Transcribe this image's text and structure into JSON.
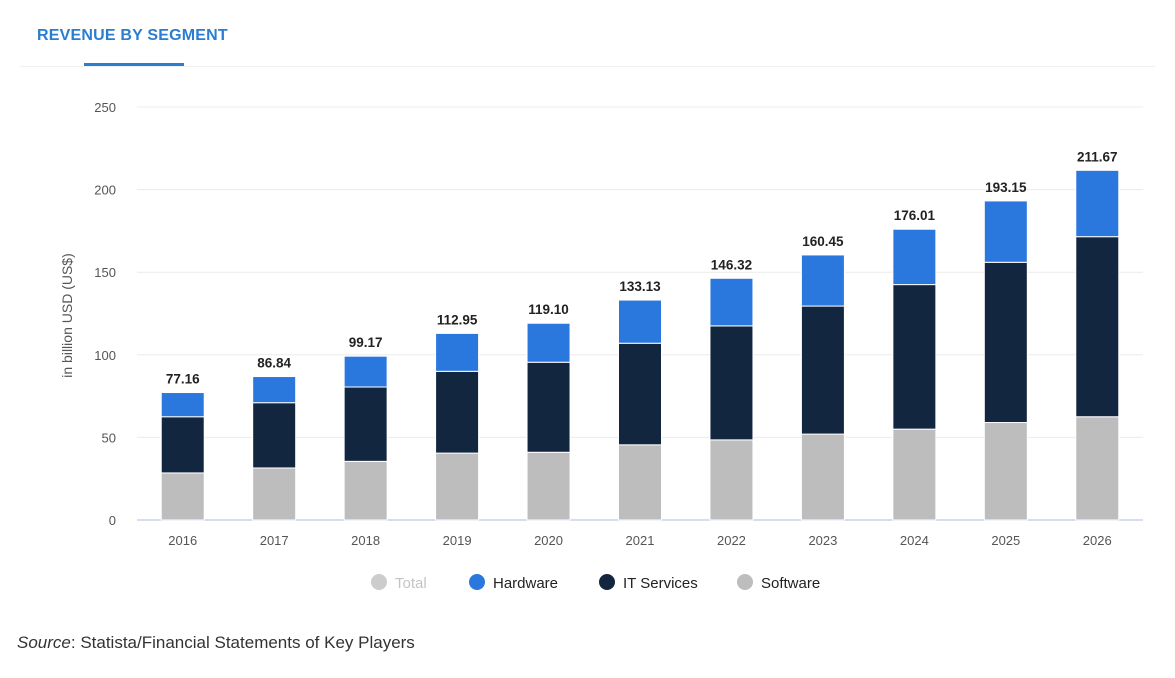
{
  "header": {
    "tab_label": "REVENUE BY SEGMENT"
  },
  "source": {
    "label": "Source",
    "text": ": Statista/Financial Statements of Key Players"
  },
  "colors": {
    "hardware": "#2a78de",
    "it_services": "#12263f",
    "software": "#bdbdbd",
    "total": "#cccccc",
    "accent": "#2a7dd0"
  },
  "chart_data": {
    "type": "bar",
    "stacked": true,
    "title": "",
    "xlabel": "",
    "ylabel": "in billion USD (US$)",
    "ylim": [
      0,
      250
    ],
    "yticks": [
      0,
      50,
      100,
      150,
      200,
      250
    ],
    "categories": [
      "2016",
      "2017",
      "2018",
      "2019",
      "2020",
      "2021",
      "2022",
      "2023",
      "2024",
      "2025",
      "2026"
    ],
    "totals": [
      "77.16",
      "86.84",
      "99.17",
      "112.95",
      "119.10",
      "133.13",
      "146.32",
      "160.45",
      "176.01",
      "193.15",
      "211.67"
    ],
    "series": [
      {
        "name": "Software",
        "color": "#bdbdbd",
        "values": [
          28.5,
          31.5,
          35.5,
          40.5,
          41.0,
          45.5,
          48.5,
          52.0,
          55.0,
          59.0,
          62.5
        ]
      },
      {
        "name": "IT Services",
        "color": "#12263f",
        "values": [
          34.0,
          39.5,
          45.0,
          49.5,
          54.5,
          61.5,
          69.0,
          77.5,
          87.5,
          97.0,
          109.0
        ]
      },
      {
        "name": "Hardware",
        "color": "#2a78de",
        "values": [
          14.66,
          15.84,
          18.67,
          22.95,
          23.6,
          26.13,
          28.82,
          30.95,
          33.51,
          37.15,
          40.17
        ]
      }
    ],
    "legend": {
      "position": "bottom",
      "items": [
        {
          "name": "Total",
          "color": "#cccccc",
          "muted": true
        },
        {
          "name": "Hardware",
          "color": "#2a78de"
        },
        {
          "name": "IT Services",
          "color": "#12263f"
        },
        {
          "name": "Software",
          "color": "#bdbdbd"
        }
      ]
    },
    "grid": true
  }
}
